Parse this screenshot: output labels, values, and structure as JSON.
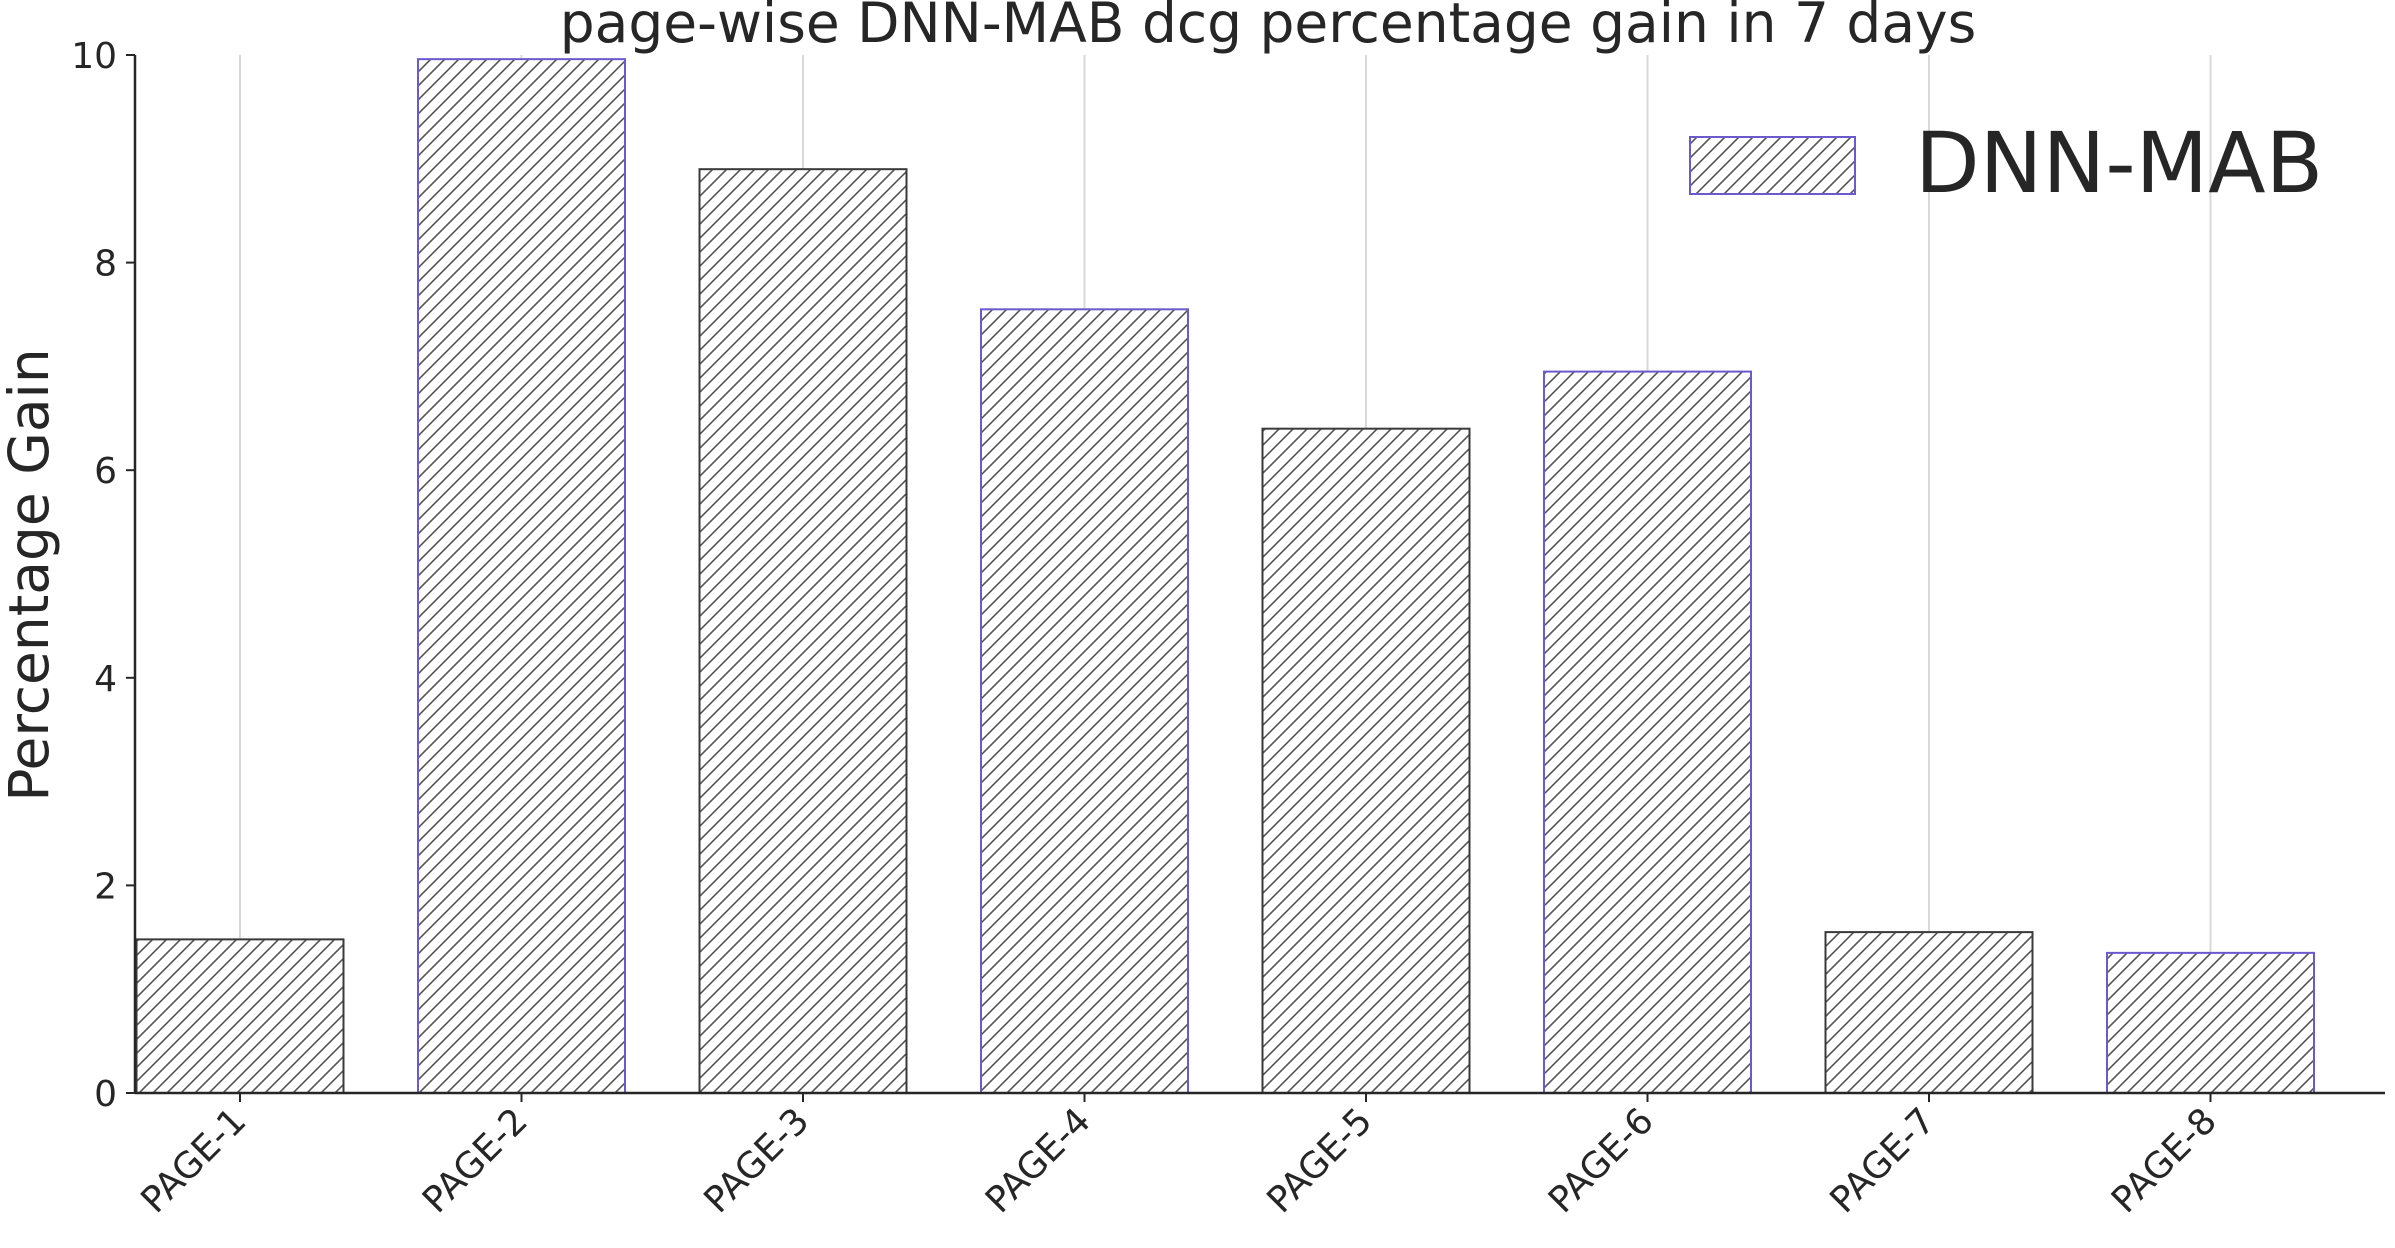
{
  "chart_data": {
    "type": "bar",
    "title": "page-wise DNN-MAB dcg percentage gain in 7 days",
    "xlabel": "",
    "ylabel": "Percentage Gain",
    "categories": [
      "PAGE-1",
      "PAGE-2",
      "PAGE-3",
      "PAGE-4",
      "PAGE-5",
      "PAGE-6",
      "PAGE-7",
      "PAGE-8"
    ],
    "series": [
      {
        "name": "DNN-MAB",
        "values": [
          1.48,
          9.96,
          8.9,
          7.55,
          6.4,
          6.95,
          1.55,
          1.35
        ]
      }
    ],
    "ylim": [
      0,
      10
    ],
    "yticks": [
      0,
      2,
      4,
      6,
      8,
      10
    ],
    "grid": "vertical",
    "legend_position": "top-right",
    "bar_hatch": "diagonal",
    "colors": {
      "bar_fill": "#ffffff",
      "hatch": "#555555",
      "edge_odd": "#3a3a3a",
      "edge_even": "#6a5acd",
      "grid": "#d9d9d9",
      "axis": "#262626"
    }
  }
}
